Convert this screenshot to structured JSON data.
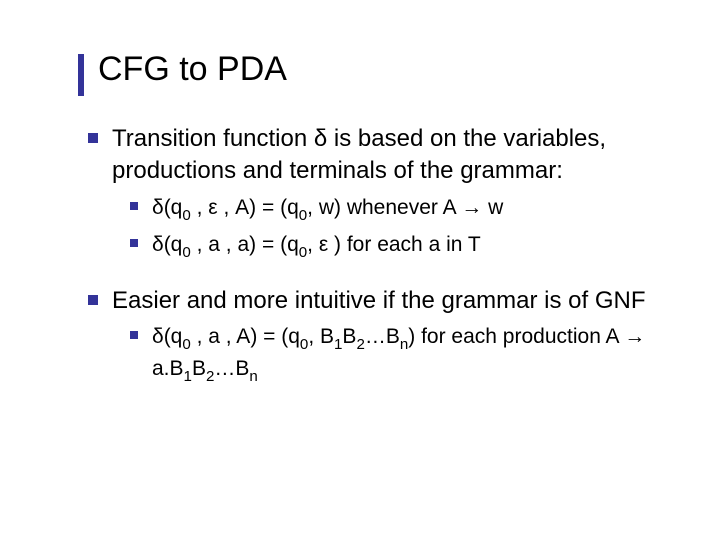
{
  "title": "CFG to PDA",
  "accent_color": "#333399",
  "bullet_color": "#333399",
  "text_color": "#000000",
  "background_color": "#ffffff",
  "title_fontsize": 34,
  "body_fontsize_lvl1": 24,
  "body_fontsize_lvl2": 21,
  "items": [
    {
      "level": 1,
      "plain": "Transition function δ is based on the variables, productions and terminals of the grammar:",
      "html": "Transition function &delta; is based on the variables, productions and terminals of the grammar:"
    },
    {
      "level": 2,
      "plain": "δ(q0 , ϵ , A) = (q0, w) whenever A → w",
      "html": "&delta;(q<span class=\"sub\">0</span> , &epsilon; , A) = (q<span class=\"sub\">0</span>, w) whenever A &rarr; w"
    },
    {
      "level": 2,
      "plain": "δ(q0 , a , a) = (q0, ϵ ) for each a in T",
      "html": "&delta;(q<span class=\"sub\">0</span> , a , a) = (q<span class=\"sub\">0</span>, &epsilon; ) for each a in T"
    },
    {
      "level": 0,
      "spacer": true
    },
    {
      "level": 1,
      "plain": "Easier and more intuitive if the grammar is of GNF",
      "html": "Easier and more intuitive if the grammar is of GNF"
    },
    {
      "level": 2,
      "plain": "δ(q0 , a , A) = (q0, B1B2…Bn) for each production A → a.B1B2…Bn",
      "html": "&delta;(q<span class=\"sub\">0</span> , a , A) = (q<span class=\"sub\">0</span>, B<span class=\"sub\">1</span>B<span class=\"sub\">2</span>&hellip;B<span class=\"sub\">n</span>) for each production A &rarr; a.B<span class=\"sub\">1</span>B<span class=\"sub\">2</span>&hellip;B<span class=\"sub\">n</span>"
    }
  ]
}
